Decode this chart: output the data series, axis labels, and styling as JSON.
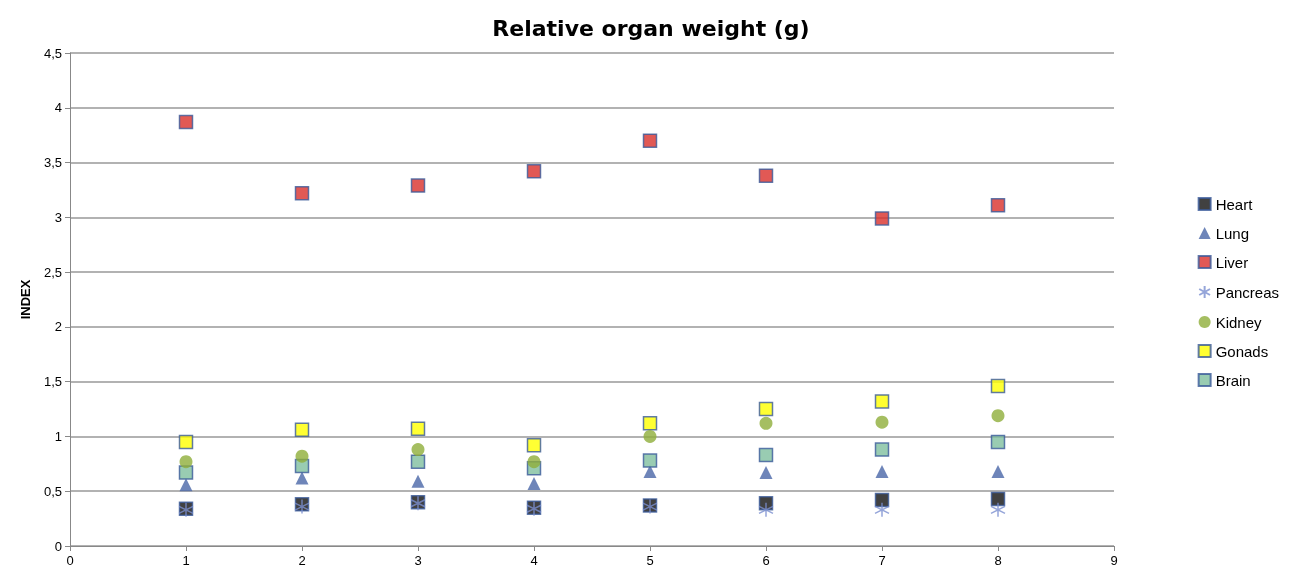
{
  "chart_data": {
    "type": "scatter",
    "title": "Relative organ weight (g)",
    "ylabel": "INDEX",
    "x": [
      1,
      2,
      3,
      4,
      5,
      6,
      7,
      8
    ],
    "series": [
      {
        "name": "Heart",
        "color": "#111111",
        "marker": "square",
        "values": [
          0.34,
          0.38,
          0.4,
          0.35,
          0.37,
          0.39,
          0.42,
          0.43
        ]
      },
      {
        "name": "Lung",
        "color": "#4a66a8",
        "marker": "triangle",
        "values": [
          0.56,
          0.62,
          0.59,
          0.57,
          0.68,
          0.67,
          0.68,
          0.68
        ]
      },
      {
        "name": "Liver",
        "color": "#d9302a",
        "marker": "square",
        "values": [
          3.87,
          3.22,
          3.29,
          3.42,
          3.7,
          3.38,
          2.99,
          3.11
        ]
      },
      {
        "name": "Pancreas",
        "color": "#7a8fd0",
        "marker": "cross",
        "values": [
          0.33,
          0.36,
          0.39,
          0.34,
          0.36,
          0.33,
          0.33,
          0.33
        ]
      },
      {
        "name": "Kidney",
        "color": "#8fae3a",
        "marker": "circle",
        "values": [
          0.77,
          0.82,
          0.88,
          0.77,
          1.0,
          1.12,
          1.13,
          1.19
        ]
      },
      {
        "name": "Gonads",
        "color": "#ffff00",
        "marker": "square",
        "values": [
          0.95,
          1.06,
          1.07,
          0.92,
          1.12,
          1.25,
          1.32,
          1.46
        ]
      },
      {
        "name": "Brain",
        "color": "#7fbf9f",
        "marker": "square",
        "values": [
          0.67,
          0.73,
          0.77,
          0.71,
          0.78,
          0.83,
          0.88,
          0.95
        ]
      }
    ],
    "xlim": [
      0,
      9
    ],
    "xticks": [
      0,
      1,
      2,
      3,
      4,
      5,
      6,
      7,
      8,
      9
    ],
    "ylim": [
      0,
      4.5
    ],
    "yticks": [
      0,
      {
        "value": 0.5,
        "label": "0,5"
      },
      1,
      {
        "value": 1.5,
        "label": "1,5"
      },
      2,
      {
        "value": 2.5,
        "label": "2,5"
      },
      3,
      {
        "value": 3.5,
        "label": "3,5"
      },
      4,
      {
        "value": 4.5,
        "label": "4,5"
      }
    ],
    "grid": "y",
    "legend": "right"
  }
}
